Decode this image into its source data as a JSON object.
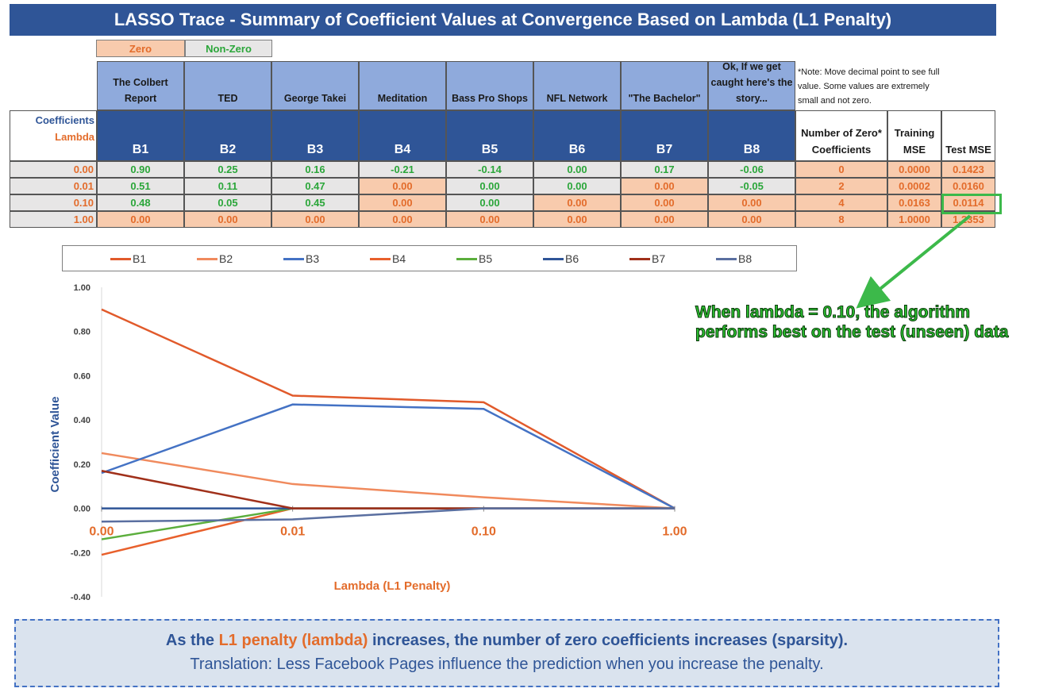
{
  "title": "LASSO Trace - Summary of Coefficient Values at Convergence Based on Lambda (L1 Penalty)",
  "keys": {
    "zero": "Zero",
    "nonzero": "Non-Zero"
  },
  "colors": {
    "zero_bg": "#F8CBAD",
    "zero_text": "#E36C2B",
    "nonzero_bg": "#E7E6E6",
    "nonzero_text": "#2BA63A",
    "header_dark": "#2F5597",
    "header_light": "#8FAADC"
  },
  "table": {
    "coef_label": "Coefficients",
    "lambda_label": "Lambda",
    "features": [
      "The Colbert Report",
      "TED",
      "George Takei",
      "Meditation",
      "Bass Pro Shops",
      "NFL Network",
      "\"The Bachelor\"",
      "Ok, If we get caught here's the story..."
    ],
    "betas": [
      "B1",
      "B2",
      "B3",
      "B4",
      "B5",
      "B6",
      "B7",
      "B8"
    ],
    "stat_headers": [
      "Number of Zero* Coefficients",
      "Training MSE",
      "Test MSE"
    ],
    "rows": [
      {
        "lambda": "0.00",
        "values": [
          "0.90",
          "0.25",
          "0.16",
          "-0.21",
          "-0.14",
          "0.00",
          "0.17",
          "-0.06"
        ],
        "zero_flags": [
          false,
          false,
          false,
          false,
          false,
          false,
          false,
          false
        ],
        "zeros": "0",
        "train_mse": "0.0000",
        "test_mse": "0.1423"
      },
      {
        "lambda": "0.01",
        "values": [
          "0.51",
          "0.11",
          "0.47",
          "0.00",
          "0.00",
          "0.00",
          "0.00",
          "-0.05"
        ],
        "zero_flags": [
          false,
          false,
          false,
          true,
          false,
          false,
          true,
          false
        ],
        "zeros": "2",
        "train_mse": "0.0002",
        "test_mse": "0.0160"
      },
      {
        "lambda": "0.10",
        "values": [
          "0.48",
          "0.05",
          "0.45",
          "0.00",
          "0.00",
          "0.00",
          "0.00",
          "0.00"
        ],
        "zero_flags": [
          false,
          false,
          false,
          true,
          false,
          true,
          true,
          true
        ],
        "zeros": "4",
        "train_mse": "0.0163",
        "test_mse": "0.0114"
      },
      {
        "lambda": "1.00",
        "values": [
          "0.00",
          "0.00",
          "0.00",
          "0.00",
          "0.00",
          "0.00",
          "0.00",
          "0.00"
        ],
        "zero_flags": [
          true,
          true,
          true,
          true,
          true,
          true,
          true,
          true
        ],
        "zeros": "8",
        "train_mse": "1.0000",
        "test_mse": "1.2353"
      }
    ]
  },
  "note": "*Note: Move decimal point to see full value.  Some values are extremely small and not zero.",
  "annotation": "When lambda = 0.10, the algorithm performs best on the test (unseen) data",
  "chart_data": {
    "type": "line",
    "x": [
      "0.00",
      "0.01",
      "0.10",
      "1.00"
    ],
    "ylim": [
      -0.4,
      1.0
    ],
    "yticks": [
      "1.00",
      "0.80",
      "0.60",
      "0.40",
      "0.20",
      "0.00",
      "-0.20",
      "-0.40"
    ],
    "xlabel": "Lambda (L1 Penalty)",
    "ylabel": "Coefficient Value",
    "legend_position": "top",
    "series": [
      {
        "name": "B1",
        "color": "#E15A2B",
        "values": [
          0.9,
          0.51,
          0.48,
          0.0
        ]
      },
      {
        "name": "B2",
        "color": "#F08A5D",
        "values": [
          0.25,
          0.11,
          0.05,
          0.0
        ]
      },
      {
        "name": "B3",
        "color": "#4472C4",
        "values": [
          0.16,
          0.47,
          0.45,
          0.0
        ]
      },
      {
        "name": "B4",
        "color": "#E8602C",
        "values": [
          -0.21,
          0.0,
          0.0,
          0.0
        ]
      },
      {
        "name": "B5",
        "color": "#5BAE3C",
        "values": [
          -0.14,
          0.0,
          0.0,
          0.0
        ]
      },
      {
        "name": "B6",
        "color": "#2F5597",
        "values": [
          0.0,
          0.0,
          0.0,
          0.0
        ]
      },
      {
        "name": "B7",
        "color": "#A0301A",
        "values": [
          0.17,
          0.0,
          0.0,
          0.0
        ]
      },
      {
        "name": "B8",
        "color": "#5A6FA0",
        "values": [
          -0.06,
          -0.05,
          0.0,
          0.0
        ]
      }
    ]
  },
  "footer": {
    "line1_pre": "As the ",
    "line1_highlight": "L1 penalty (lambda)",
    "line1_post": " increases, the number of zero coefficients increases (sparsity).",
    "line2": "Translation: Less Facebook Pages influence the prediction when you increase the penalty."
  }
}
